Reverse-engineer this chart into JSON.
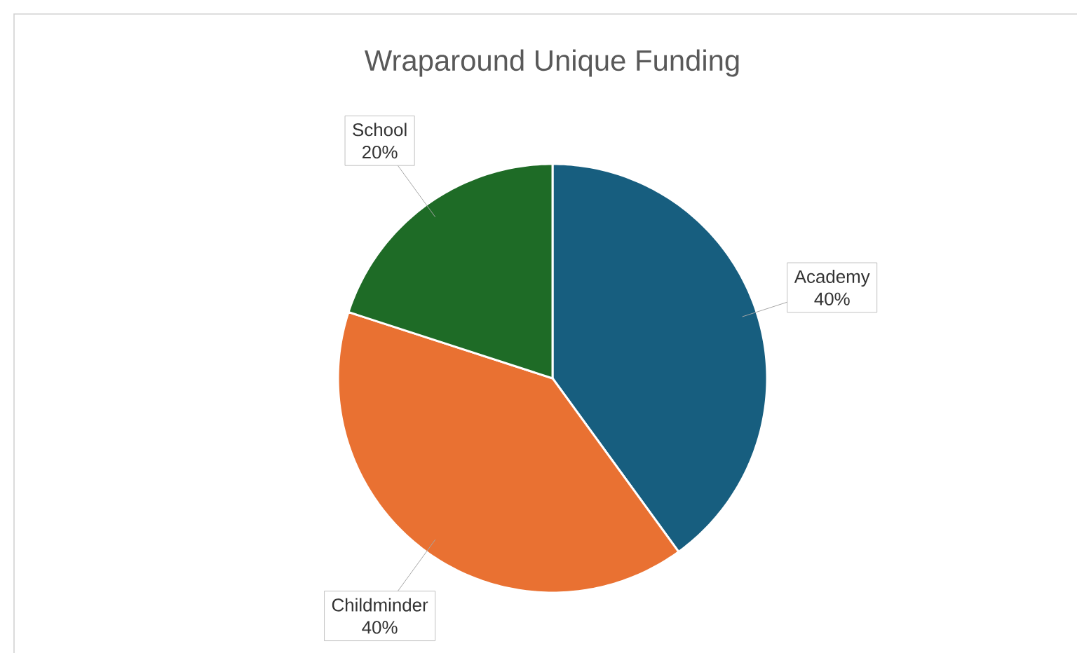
{
  "chart_data": {
    "type": "pie",
    "title": "Wraparound Unique Funding",
    "categories": [
      "Academy",
      "Childminder",
      "School"
    ],
    "values": [
      40,
      40,
      20
    ],
    "value_labels": [
      "40%",
      "40%",
      "20%"
    ],
    "colors": [
      "#175e7f",
      "#e97132",
      "#1e6b26"
    ]
  }
}
